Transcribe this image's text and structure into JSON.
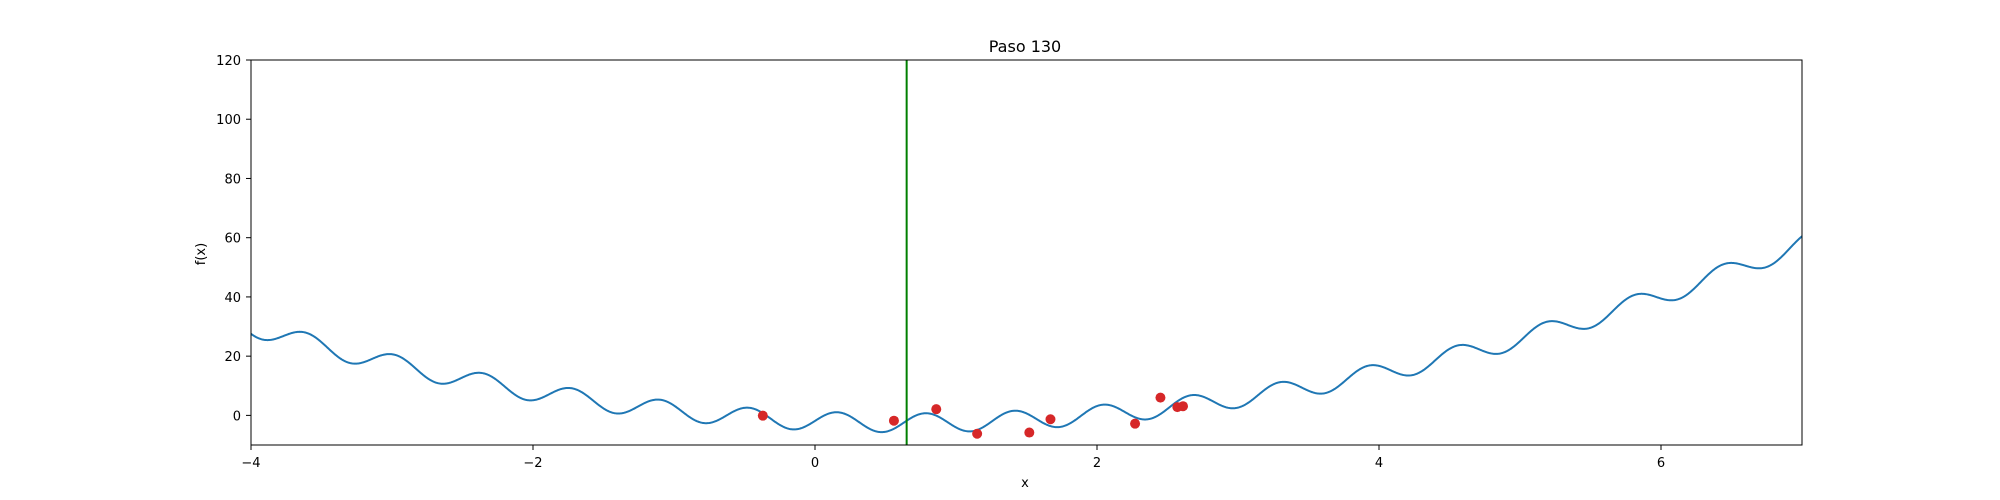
{
  "chart_data": {
    "type": "line",
    "title": "Paso 130",
    "xlabel": "x",
    "ylabel": "f(x)",
    "xlim": [
      -4,
      7
    ],
    "ylim": [
      -10,
      120
    ],
    "xticks": [
      -4,
      -2,
      0,
      2,
      4,
      6
    ],
    "yticks": [
      0,
      20,
      40,
      60,
      80,
      100,
      120
    ],
    "grid": false,
    "curve_color": "#1f77b4",
    "points_color": "#d62728",
    "marker_line_color": "#008000",
    "vertical_line_x": 0.65,
    "sample_points": [
      {
        "x": -0.37,
        "y": -0.1
      },
      {
        "x": 0.56,
        "y": -1.8
      },
      {
        "x": 0.86,
        "y": 2.1
      },
      {
        "x": 1.15,
        "y": -6.2
      },
      {
        "x": 1.52,
        "y": -5.8
      },
      {
        "x": 1.67,
        "y": -1.3
      },
      {
        "x": 2.27,
        "y": -2.8
      },
      {
        "x": 2.45,
        "y": 6.0
      },
      {
        "x": 2.57,
        "y": 2.8
      },
      {
        "x": 2.61,
        "y": 3.1
      }
    ]
  }
}
